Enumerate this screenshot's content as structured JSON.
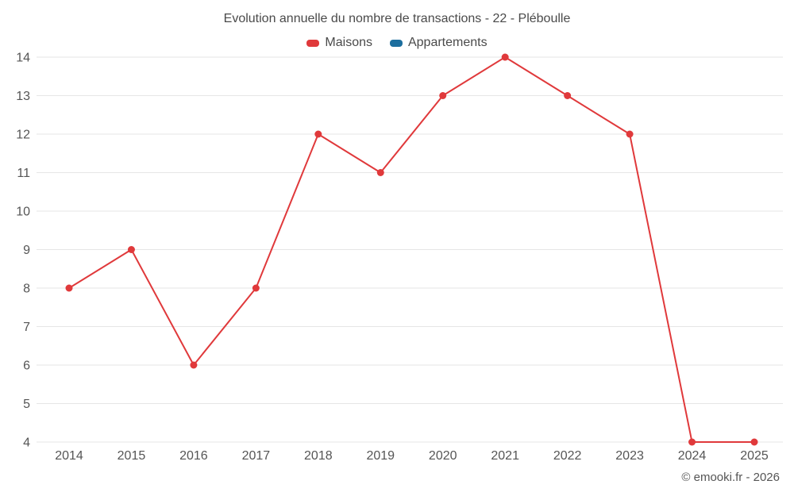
{
  "chart_data": {
    "type": "line",
    "title": "Evolution annuelle du nombre de transactions - 22 - Pléboulle",
    "x": [
      "2014",
      "2015",
      "2016",
      "2017",
      "2018",
      "2019",
      "2020",
      "2021",
      "2022",
      "2023",
      "2024",
      "2025"
    ],
    "series": [
      {
        "name": "Maisons",
        "color": "#e0393b",
        "values": [
          8,
          9,
          6,
          8,
          12,
          11,
          13,
          14,
          13,
          12,
          4,
          4
        ]
      },
      {
        "name": "Appartements",
        "color": "#1c6e9e",
        "values": []
      }
    ],
    "ylim": [
      4,
      14
    ],
    "y_ticks": [
      4,
      5,
      6,
      7,
      8,
      9,
      10,
      11,
      12,
      13,
      14
    ],
    "grid": true,
    "legend_position": "top"
  },
  "footer": {
    "text": "© emooki.fr - 2026"
  },
  "colors": {
    "title_text": "#4a4a4a",
    "axis_label": "#555555",
    "gridline": "#e6e6e6",
    "background": "#ffffff"
  }
}
